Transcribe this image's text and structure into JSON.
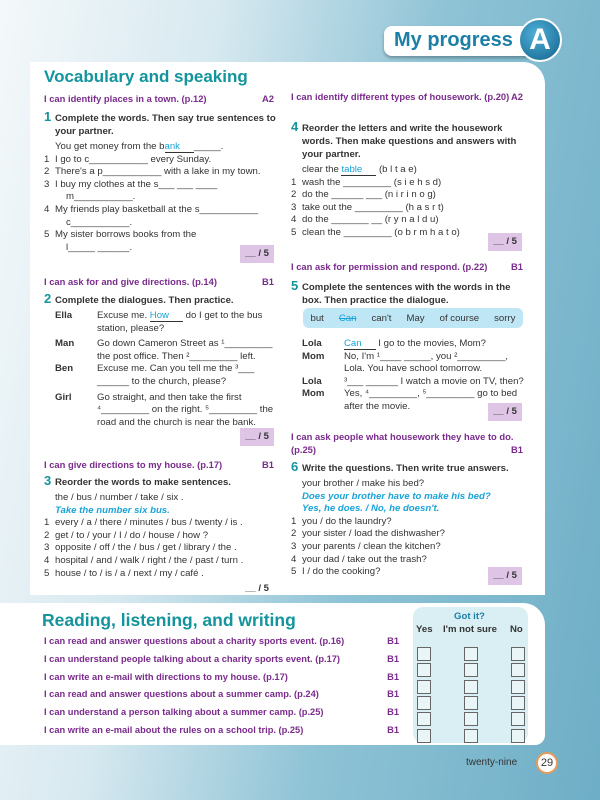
{
  "header": {
    "title": "My progress",
    "badge": "A"
  },
  "vocab": {
    "heading": "Vocabulary and speaking"
  },
  "reading": {
    "heading": "Reading, listening, and writing",
    "gotit": "Got it?",
    "cols": [
      "Yes",
      "I'm not sure",
      "No"
    ],
    "rows": [
      {
        "text": "I can read and answer questions about a charity sports event. (p.16)",
        "level": "B1"
      },
      {
        "text": "I can understand people talking about a charity sports event. (p.17)",
        "level": "B1"
      },
      {
        "text": "I can write an e-mail with directions to my house. (p.17)",
        "level": "B1"
      },
      {
        "text": "I can read and answer questions about a summer camp. (p.24)",
        "level": "B1"
      },
      {
        "text": "I can understand a person talking about a summer camp. (p.25)",
        "level": "B1"
      },
      {
        "text": "I can write an e-mail about the rules on a school trip. (p.25)",
        "level": "B1"
      }
    ]
  },
  "footer": {
    "word": "twenty-nine",
    "page": "29"
  },
  "score": "__ / 5",
  "ex": [
    {
      "cando": "I can identify places in a town. (p.12)",
      "level": "A2",
      "num": "1",
      "inst": "Complete the words. Then say true sentences to your partner.",
      "lines": [
        {
          "n": "",
          "p": [
            {
              "t": "You get money from the b"
            },
            {
              "u": "ank"
            },
            {
              "t": "_____."
            }
          ]
        },
        {
          "n": "1",
          "p": [
            {
              "t": "I go to c___________ every Sunday."
            }
          ]
        },
        {
          "n": "2",
          "p": [
            {
              "t": "There's a p___________ with a lake in my town."
            }
          ]
        },
        {
          "n": "3",
          "p": [
            {
              "t": "I buy my clothes at the s___ ___ ____"
            }
          ]
        },
        {
          "n": "",
          "i": 1,
          "p": [
            {
              "t": "m___________."
            }
          ]
        },
        {
          "n": "4",
          "p": [
            {
              "t": "My friends play basketball at the s___________"
            }
          ]
        },
        {
          "n": "",
          "i": 1,
          "p": [
            {
              "t": "c___________."
            }
          ]
        },
        {
          "n": "5",
          "p": [
            {
              "t": "My sister borrows books from the"
            }
          ]
        },
        {
          "n": "",
          "i": 1,
          "p": [
            {
              "t": "l_____ ______."
            }
          ]
        }
      ]
    },
    {
      "cando": "I can ask for and give directions. (p.14)",
      "level": "B1",
      "num": "2",
      "inst": "Complete the dialogues. Then practice.",
      "dialog": [
        {
          "s": "Ella",
          "p": [
            {
              "t": "Excuse me. "
            },
            {
              "u": "How"
            },
            {
              "t": " do I get to the bus station, please?"
            }
          ]
        },
        {
          "s": "Man",
          "p": [
            {
              "t": "Go down Cameron Street as ¹_________ the post office. Then ²_________ left."
            }
          ]
        },
        {
          "s": "Ben",
          "p": [
            {
              "t": "Excuse me. Can you tell me the ³___ ______ to the church, please?"
            }
          ]
        },
        {
          "s": "Girl",
          "p": [
            {
              "t": "Go straight, and then take the first ⁴_________ on the right. ⁵_________ the road and the church is near the bank."
            }
          ]
        }
      ]
    },
    {
      "cando": "I can give directions to my house. (p.17)",
      "level": "B1",
      "num": "3",
      "inst": "Reorder the words to make sentences.",
      "lines": [
        {
          "n": "",
          "p": [
            {
              "t": "the / bus / number / take / six ."
            }
          ]
        },
        {
          "n": "",
          "p": [
            {
              "a": "Take the number six bus."
            }
          ]
        },
        {
          "n": "1",
          "p": [
            {
              "t": "every / a / there / minutes / bus / twenty / is ."
            }
          ]
        },
        {
          "n": "2",
          "p": [
            {
              "t": "get / to / your / I / do / house / how ?"
            }
          ]
        },
        {
          "n": "3",
          "p": [
            {
              "t": "opposite / off / the / bus / get / library / the ."
            }
          ]
        },
        {
          "n": "4",
          "p": [
            {
              "t": "hospital / and / walk / right / the / past / turn ."
            }
          ]
        },
        {
          "n": "5",
          "p": [
            {
              "t": "house / to / is / a / next / my / café ."
            }
          ]
        }
      ]
    },
    {
      "cando": "I can identify different types of housework. (p.20)",
      "level": "A2",
      "num": "4",
      "inst": "Reorder the letters and write the housework words. Then make questions and answers with your partner.",
      "lines": [
        {
          "n": "",
          "p": [
            {
              "t": "clear the "
            },
            {
              "u": "table"
            },
            {
              "t": "  (b l t a e)"
            }
          ]
        },
        {
          "n": "1",
          "p": [
            {
              "t": "wash the _________  (s i e h s d)"
            }
          ]
        },
        {
          "n": "2",
          "p": [
            {
              "t": "do the ______ ___  (n i r i n o g)"
            }
          ]
        },
        {
          "n": "3",
          "p": [
            {
              "t": "take out the _________  (h a s r t)"
            }
          ]
        },
        {
          "n": "4",
          "p": [
            {
              "t": "do the _______ __  (r y n a l d u)"
            }
          ]
        },
        {
          "n": "5",
          "p": [
            {
              "t": "clean the _________  (o b r m h a t o)"
            }
          ]
        }
      ]
    },
    {
      "cando": "I can ask for permission and respond. (p.22)",
      "level": "B1",
      "num": "5",
      "inst": "Complete the sentences with the words in the box. Then practice the dialogue.",
      "words": [
        "but",
        "Can",
        "can't",
        "May",
        "of course",
        "sorry"
      ],
      "dialog": [
        {
          "s": "Lola",
          "p": [
            {
              "u": "Can"
            },
            {
              "t": " I go to the movies, Mom?"
            }
          ]
        },
        {
          "s": "Mom",
          "p": [
            {
              "t": "No, I'm ¹____ _____, you ²_________, Lola. You have school tomorrow."
            }
          ]
        },
        {
          "s": "Lola",
          "p": [
            {
              "t": "³___ ______ I watch a movie on TV, then?"
            }
          ]
        },
        {
          "s": "Mom",
          "p": [
            {
              "t": "Yes, ⁴_________, ⁵_________ go to bed after the movie."
            }
          ]
        }
      ]
    },
    {
      "cando": "I can ask people what housework they have to do. (p.25)",
      "level": "B1",
      "num": "6",
      "inst": "Write the questions. Then write true answers.",
      "lines": [
        {
          "n": "",
          "p": [
            {
              "t": "your brother / make his bed?"
            }
          ]
        },
        {
          "n": "",
          "p": [
            {
              "a": "Does your brother have to make his bed?"
            }
          ]
        },
        {
          "n": "",
          "p": [
            {
              "a": "Yes, he does. / No, he doesn't."
            }
          ]
        },
        {
          "n": "1",
          "p": [
            {
              "t": "you / do the laundry?"
            }
          ]
        },
        {
          "n": "2",
          "p": [
            {
              "t": "your sister / load the dishwasher?"
            }
          ]
        },
        {
          "n": "3",
          "p": [
            {
              "t": "your parents / clean the kitchen?"
            }
          ]
        },
        {
          "n": "4",
          "p": [
            {
              "t": "your dad / take out the trash?"
            }
          ]
        },
        {
          "n": "5",
          "p": [
            {
              "t": "I / do the cooking?"
            }
          ]
        }
      ]
    }
  ]
}
